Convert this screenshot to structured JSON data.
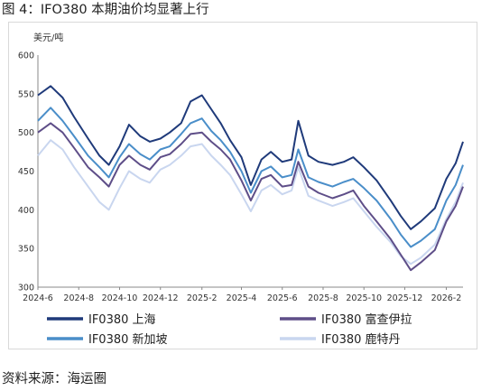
{
  "figure_title": "图 4：IFO380 本期油价均显著上行",
  "source": "资料来源：海运圈",
  "chart_data": {
    "type": "line",
    "unit_label": "美元/吨",
    "ylim": [
      300,
      600
    ],
    "yticks": [
      300,
      350,
      400,
      450,
      500,
      550,
      600
    ],
    "xticks": [
      "2024-6",
      "2024-8",
      "2024-10",
      "2024-12",
      "2025-2",
      "2025-4",
      "2025-6",
      "2025-8",
      "2025-10",
      "2025-12",
      "2026-2"
    ],
    "x_range": [
      "2024-06-01",
      "2026-02-26"
    ],
    "grid": false,
    "legend_position": "bottom",
    "series": [
      {
        "name": "IF0380 上海",
        "color": "#1f3a7a",
        "points": [
          [
            "2024-06-01",
            548
          ],
          [
            "2024-06-20",
            560
          ],
          [
            "2024-07-08",
            545
          ],
          [
            "2024-07-25",
            520
          ],
          [
            "2024-08-15",
            492
          ],
          [
            "2024-09-01",
            470
          ],
          [
            "2024-09-15",
            458
          ],
          [
            "2024-10-01",
            482
          ],
          [
            "2024-10-15",
            510
          ],
          [
            "2024-11-01",
            495
          ],
          [
            "2024-11-15",
            488
          ],
          [
            "2024-12-01",
            492
          ],
          [
            "2024-12-15",
            500
          ],
          [
            "2025-01-01",
            512
          ],
          [
            "2025-01-15",
            540
          ],
          [
            "2025-02-01",
            548
          ],
          [
            "2025-02-15",
            530
          ],
          [
            "2025-03-01",
            512
          ],
          [
            "2025-03-15",
            490
          ],
          [
            "2025-04-01",
            468
          ],
          [
            "2025-04-15",
            432
          ],
          [
            "2025-05-01",
            465
          ],
          [
            "2025-05-15",
            475
          ],
          [
            "2025-06-01",
            462
          ],
          [
            "2025-06-15",
            465
          ],
          [
            "2025-06-25",
            515
          ],
          [
            "2025-07-10",
            470
          ],
          [
            "2025-07-25",
            462
          ],
          [
            "2025-08-15",
            458
          ],
          [
            "2025-09-01",
            462
          ],
          [
            "2025-09-15",
            468
          ],
          [
            "2025-10-01",
            455
          ],
          [
            "2025-10-20",
            438
          ],
          [
            "2025-11-10",
            412
          ],
          [
            "2025-11-25",
            392
          ],
          [
            "2025-12-10",
            375
          ],
          [
            "2025-12-25",
            385
          ],
          [
            "2026-01-15",
            402
          ],
          [
            "2026-02-01",
            440
          ],
          [
            "2026-02-15",
            460
          ],
          [
            "2026-02-26",
            488
          ]
        ]
      },
      {
        "name": "IF0380 富查伊拉",
        "color": "#5e4e88",
        "points": [
          [
            "2024-06-01",
            500
          ],
          [
            "2024-06-20",
            512
          ],
          [
            "2024-07-08",
            500
          ],
          [
            "2024-07-25",
            480
          ],
          [
            "2024-08-15",
            455
          ],
          [
            "2024-09-01",
            442
          ],
          [
            "2024-09-15",
            430
          ],
          [
            "2024-10-01",
            458
          ],
          [
            "2024-10-15",
            470
          ],
          [
            "2024-11-01",
            458
          ],
          [
            "2024-11-15",
            452
          ],
          [
            "2024-12-01",
            468
          ],
          [
            "2024-12-15",
            472
          ],
          [
            "2025-01-01",
            485
          ],
          [
            "2025-01-15",
            498
          ],
          [
            "2025-02-01",
            500
          ],
          [
            "2025-02-15",
            488
          ],
          [
            "2025-03-01",
            478
          ],
          [
            "2025-03-15",
            465
          ],
          [
            "2025-04-01",
            438
          ],
          [
            "2025-04-15",
            412
          ],
          [
            "2025-05-01",
            440
          ],
          [
            "2025-05-15",
            445
          ],
          [
            "2025-06-01",
            430
          ],
          [
            "2025-06-15",
            432
          ],
          [
            "2025-06-25",
            462
          ],
          [
            "2025-07-10",
            430
          ],
          [
            "2025-07-25",
            422
          ],
          [
            "2025-08-15",
            415
          ],
          [
            "2025-09-01",
            420
          ],
          [
            "2025-09-15",
            425
          ],
          [
            "2025-10-01",
            405
          ],
          [
            "2025-10-20",
            385
          ],
          [
            "2025-11-10",
            362
          ],
          [
            "2025-11-25",
            342
          ],
          [
            "2025-12-10",
            322
          ],
          [
            "2025-12-25",
            332
          ],
          [
            "2026-01-15",
            348
          ],
          [
            "2026-02-01",
            385
          ],
          [
            "2026-02-15",
            405
          ],
          [
            "2026-02-26",
            430
          ]
        ]
      },
      {
        "name": "IF0380 新加坡",
        "color": "#4a8ec9",
        "points": [
          [
            "2024-06-01",
            515
          ],
          [
            "2024-06-20",
            532
          ],
          [
            "2024-07-08",
            515
          ],
          [
            "2024-07-25",
            495
          ],
          [
            "2024-08-15",
            470
          ],
          [
            "2024-09-01",
            455
          ],
          [
            "2024-09-15",
            442
          ],
          [
            "2024-10-01",
            468
          ],
          [
            "2024-10-15",
            485
          ],
          [
            "2024-11-01",
            472
          ],
          [
            "2024-11-15",
            465
          ],
          [
            "2024-12-01",
            478
          ],
          [
            "2024-12-15",
            482
          ],
          [
            "2025-01-01",
            498
          ],
          [
            "2025-01-15",
            512
          ],
          [
            "2025-02-01",
            518
          ],
          [
            "2025-02-15",
            502
          ],
          [
            "2025-03-01",
            490
          ],
          [
            "2025-03-15",
            475
          ],
          [
            "2025-04-01",
            450
          ],
          [
            "2025-04-15",
            422
          ],
          [
            "2025-05-01",
            450
          ],
          [
            "2025-05-15",
            456
          ],
          [
            "2025-06-01",
            442
          ],
          [
            "2025-06-15",
            445
          ],
          [
            "2025-06-25",
            478
          ],
          [
            "2025-07-10",
            442
          ],
          [
            "2025-07-25",
            436
          ],
          [
            "2025-08-15",
            430
          ],
          [
            "2025-09-01",
            436
          ],
          [
            "2025-09-15",
            440
          ],
          [
            "2025-10-01",
            428
          ],
          [
            "2025-10-20",
            412
          ],
          [
            "2025-11-10",
            388
          ],
          [
            "2025-11-25",
            368
          ],
          [
            "2025-12-10",
            352
          ],
          [
            "2025-12-25",
            360
          ],
          [
            "2026-01-15",
            375
          ],
          [
            "2026-02-01",
            412
          ],
          [
            "2026-02-15",
            432
          ],
          [
            "2026-02-26",
            458
          ]
        ]
      },
      {
        "name": "IF0380 鹿特丹",
        "color": "#c9d6ef",
        "points": [
          [
            "2024-06-01",
            470
          ],
          [
            "2024-06-20",
            490
          ],
          [
            "2024-07-08",
            478
          ],
          [
            "2024-07-25",
            455
          ],
          [
            "2024-08-15",
            430
          ],
          [
            "2024-09-01",
            410
          ],
          [
            "2024-09-15",
            400
          ],
          [
            "2024-10-01",
            428
          ],
          [
            "2024-10-15",
            450
          ],
          [
            "2024-11-01",
            440
          ],
          [
            "2024-11-15",
            435
          ],
          [
            "2024-12-01",
            452
          ],
          [
            "2024-12-15",
            458
          ],
          [
            "2025-01-01",
            470
          ],
          [
            "2025-01-15",
            482
          ],
          [
            "2025-02-01",
            485
          ],
          [
            "2025-02-15",
            470
          ],
          [
            "2025-03-01",
            458
          ],
          [
            "2025-03-15",
            445
          ],
          [
            "2025-04-01",
            420
          ],
          [
            "2025-04-15",
            398
          ],
          [
            "2025-05-01",
            425
          ],
          [
            "2025-05-15",
            432
          ],
          [
            "2025-06-01",
            420
          ],
          [
            "2025-06-15",
            425
          ],
          [
            "2025-06-25",
            455
          ],
          [
            "2025-07-10",
            418
          ],
          [
            "2025-07-25",
            412
          ],
          [
            "2025-08-15",
            405
          ],
          [
            "2025-09-01",
            410
          ],
          [
            "2025-09-15",
            415
          ],
          [
            "2025-10-01",
            398
          ],
          [
            "2025-10-20",
            378
          ],
          [
            "2025-11-10",
            358
          ],
          [
            "2025-11-25",
            340
          ],
          [
            "2025-12-10",
            330
          ],
          [
            "2025-12-25",
            338
          ],
          [
            "2026-01-15",
            355
          ],
          [
            "2026-02-01",
            388
          ],
          [
            "2026-02-15",
            410
          ],
          [
            "2026-02-26",
            435
          ]
        ]
      }
    ]
  }
}
